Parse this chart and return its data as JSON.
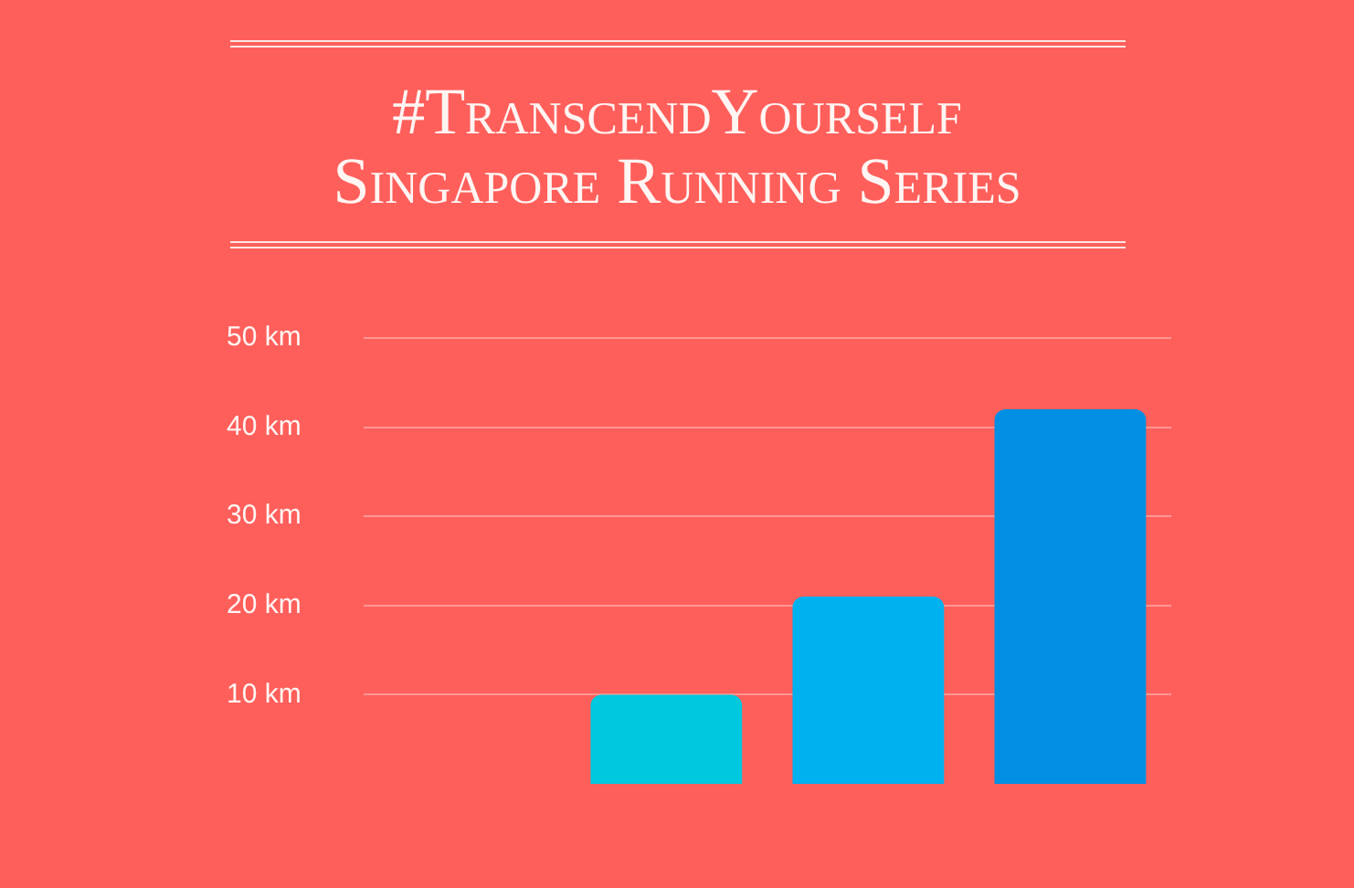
{
  "chart_data": {
    "type": "bar",
    "title": "#TranscendYourself",
    "subtitle": "Singapore Running Series",
    "categories": [
      null,
      null,
      null,
      null
    ],
    "values": [
      null,
      10,
      21,
      42
    ],
    "colors": [
      "#00c9df",
      "#00c9df",
      "#00b1f0",
      "#008fe3"
    ],
    "ylim": [
      0,
      50
    ],
    "yticks": [
      {
        "value": 10,
        "label": "10 km"
      },
      {
        "value": 20,
        "label": "20 km"
      },
      {
        "value": 30,
        "label": "30 km"
      },
      {
        "value": 40,
        "label": "40 km"
      },
      {
        "value": 50,
        "label": "50 km"
      }
    ],
    "grid": "y"
  }
}
